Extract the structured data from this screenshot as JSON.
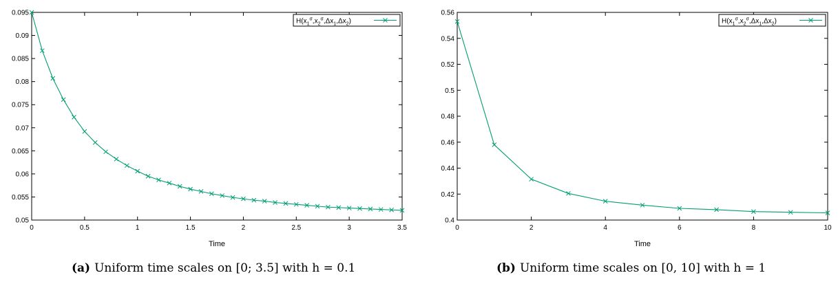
{
  "colors": {
    "series": "#009e73",
    "axis": "#000000"
  },
  "chart_data": [
    {
      "type": "line",
      "title": "",
      "xlabel": "Time",
      "ylabel": "",
      "xlim": [
        0,
        3.5
      ],
      "ylim": [
        0.05,
        0.095
      ],
      "xticks": [
        "0",
        "0.5",
        "1",
        "1.5",
        "2",
        "2.5",
        "3",
        "3.5"
      ],
      "yticks": [
        "0.05",
        "0.055",
        "0.06",
        "0.065",
        "0.07",
        "0.075",
        "0.08",
        "0.085",
        "0.09",
        "0.095"
      ],
      "grid": false,
      "legend_position": "top-right",
      "series": [
        {
          "name": "H(x1σ,x2σ,Δx1,Δx2)",
          "marker": "x",
          "x": [
            0,
            0.1,
            0.2,
            0.3,
            0.4,
            0.5,
            0.6,
            0.7,
            0.8,
            0.9,
            1.0,
            1.1,
            1.2,
            1.3,
            1.4,
            1.5,
            1.6,
            1.7,
            1.8,
            1.9,
            2.0,
            2.1,
            2.2,
            2.3,
            2.4,
            2.5,
            2.6,
            2.7,
            2.8,
            2.9,
            3.0,
            3.1,
            3.2,
            3.3,
            3.4,
            3.5
          ],
          "y": [
            0.095,
            0.0867,
            0.0807,
            0.0761,
            0.0723,
            0.0692,
            0.0668,
            0.0648,
            0.0632,
            0.0618,
            0.0606,
            0.0595,
            0.0587,
            0.058,
            0.0573,
            0.0567,
            0.0562,
            0.0557,
            0.0553,
            0.0549,
            0.0546,
            0.0543,
            0.0541,
            0.0538,
            0.0536,
            0.0534,
            0.0532,
            0.053,
            0.0528,
            0.0527,
            0.0526,
            0.0525,
            0.0524,
            0.0523,
            0.0522,
            0.0521
          ]
        }
      ]
    },
    {
      "type": "line",
      "title": "",
      "xlabel": "Time",
      "ylabel": "",
      "xlim": [
        0,
        10
      ],
      "ylim": [
        0.4,
        0.56
      ],
      "xticks": [
        "0",
        "2",
        "4",
        "6",
        "8",
        "10"
      ],
      "yticks": [
        "0.4",
        "0.42",
        "0.44",
        "0.46",
        "0.48",
        "0.5",
        "0.52",
        "0.54",
        "0.56"
      ],
      "grid": false,
      "legend_position": "top-right",
      "series": [
        {
          "name": "H(x1σ,x2σ,Δx1,Δx2)",
          "marker": "x",
          "x": [
            0,
            1,
            2,
            3,
            4,
            5,
            6,
            7,
            8,
            9,
            10
          ],
          "y": [
            0.553,
            0.458,
            0.4315,
            0.4205,
            0.4145,
            0.4115,
            0.409,
            0.408,
            0.4065,
            0.406,
            0.4055
          ]
        }
      ]
    }
  ],
  "captions": [
    {
      "tag": "(a)",
      "text": "Uniform time scales on [0; 3.5] with h = 0.1"
    },
    {
      "tag": "(b)",
      "text": "Uniform time scales on [0, 10] with h = 1"
    }
  ]
}
